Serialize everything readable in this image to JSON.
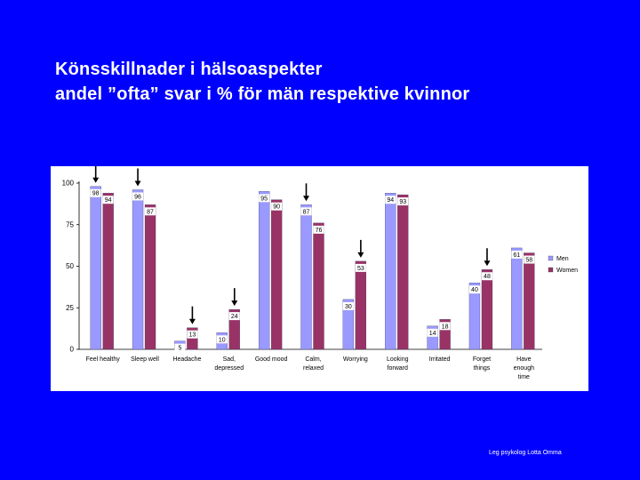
{
  "title_lines": [
    "Könsskillnader i hälsoaspekter",
    "andel ”ofta” svar i % för män respektive kvinnor"
  ],
  "footer": "Leg psykolog Lotta Omma",
  "colors": {
    "background": "#0000ff",
    "men": "#9999ff",
    "women": "#993366",
    "arrow": "#000000"
  },
  "chart_data": {
    "type": "bar",
    "categories": [
      [
        "Feel healthy"
      ],
      [
        "Sleep well"
      ],
      [
        "Headache"
      ],
      [
        "Sad,",
        "depressed"
      ],
      [
        "Good mood"
      ],
      [
        "Calm,",
        "relaxed"
      ],
      [
        "Worrying"
      ],
      [
        "Looking",
        "forward"
      ],
      [
        "Irritated"
      ],
      [
        "Forget",
        "things"
      ],
      [
        "Have",
        "enough",
        "time"
      ]
    ],
    "series": [
      {
        "name": "Men",
        "values": [
          98,
          96,
          5,
          10,
          95,
          87,
          30,
          94,
          14,
          40,
          61
        ]
      },
      {
        "name": "Women",
        "values": [
          94,
          87,
          13,
          24,
          90,
          76,
          53,
          93,
          18,
          48,
          58
        ]
      }
    ],
    "ylim": [
      0,
      100
    ],
    "yticks": [
      0,
      25,
      50,
      75,
      100
    ],
    "grid": false,
    "legend_position": "right",
    "arrows": [
      {
        "category": 0,
        "target": "men"
      },
      {
        "category": 1,
        "target": "men"
      },
      {
        "category": 2,
        "target": "women"
      },
      {
        "category": 3,
        "target": "women"
      },
      {
        "category": 5,
        "target": "men"
      },
      {
        "category": 6,
        "target": "women"
      },
      {
        "category": 9,
        "target": "women"
      }
    ]
  }
}
